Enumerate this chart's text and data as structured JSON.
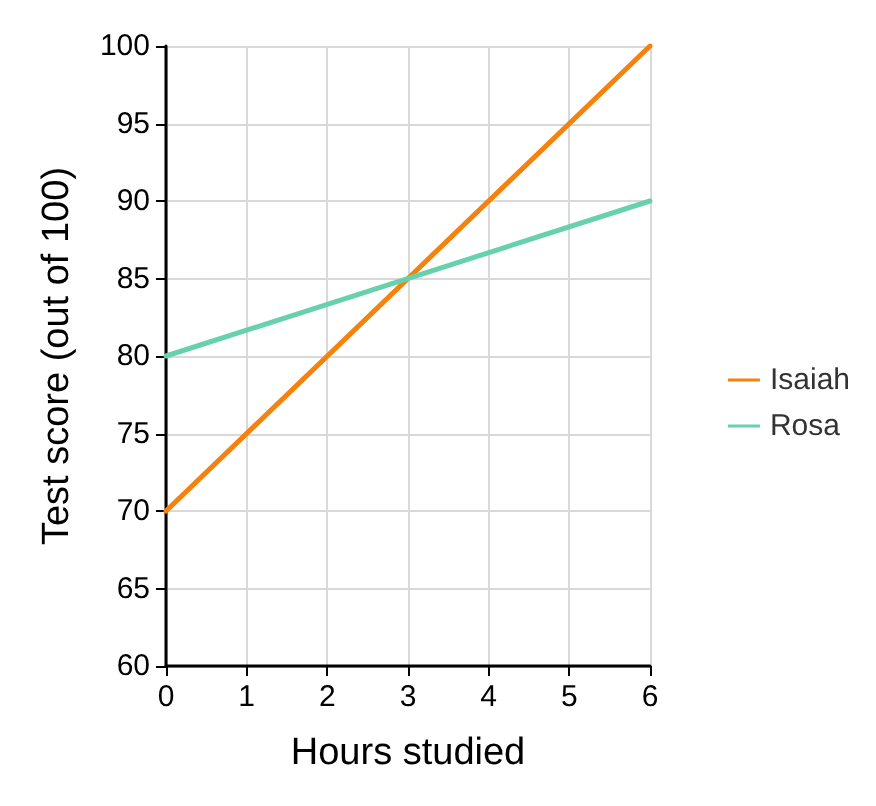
{
  "chart_data": {
    "type": "line",
    "xlabel": "Hours studied",
    "ylabel": "Test score (out of 100)",
    "x": [
      0,
      6
    ],
    "series": [
      {
        "name": "Isaiah",
        "color": "#f5820d",
        "values": [
          70,
          100
        ]
      },
      {
        "name": "Rosa",
        "color": "#66d1aa",
        "values": [
          80,
          90
        ]
      }
    ],
    "xlim": [
      0,
      6
    ],
    "xticks": [
      0,
      1,
      2,
      3,
      4,
      5,
      6
    ],
    "ylim": [
      60,
      100
    ],
    "yticks": [
      60,
      65,
      70,
      75,
      80,
      85,
      90,
      95,
      100
    ],
    "grid": true,
    "legend": "right",
    "marker": "none",
    "line_style": "solid"
  }
}
